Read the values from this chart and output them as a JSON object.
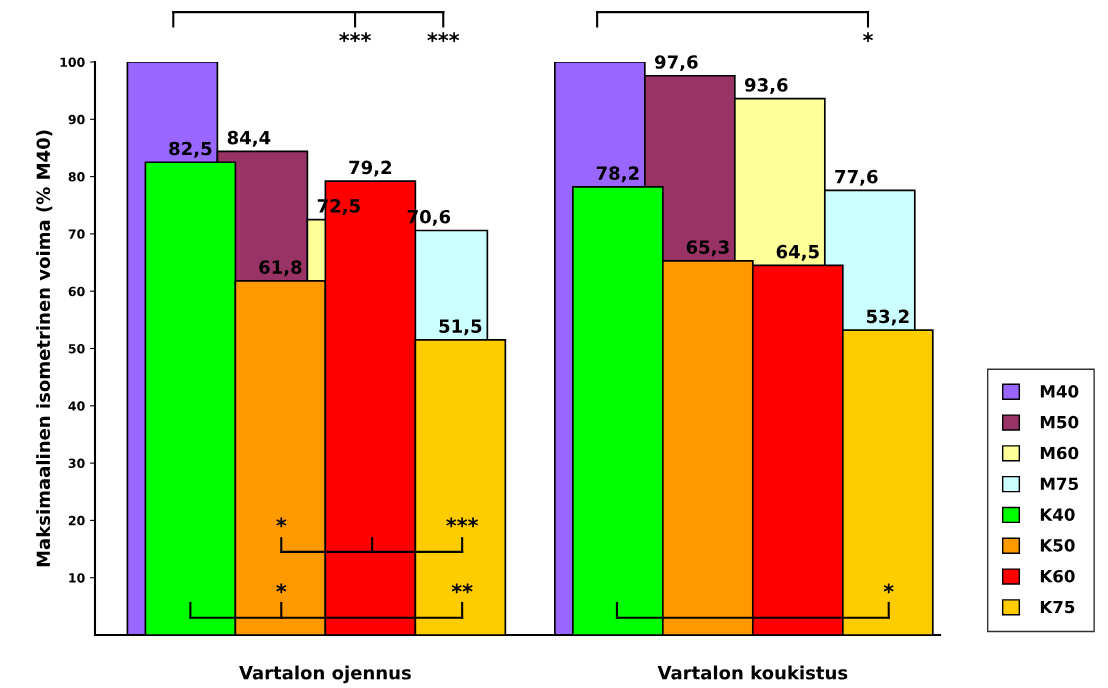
{
  "chart_data": {
    "type": "bar",
    "ylabel": "Maksimaalinen isometrinen voima (% M40)",
    "categories": [
      "Vartalon ojennus",
      "Vartalon koukistus"
    ],
    "series": [
      {
        "name": "M40",
        "color": "#9966ff",
        "values": [
          100,
          100
        ],
        "value_labels": [
          null,
          null
        ]
      },
      {
        "name": "M50",
        "color": "#993366",
        "values": [
          84.4,
          97.6
        ],
        "value_labels": [
          "84,4",
          "97,6"
        ]
      },
      {
        "name": "M60",
        "color": "#ffff99",
        "values": [
          72.5,
          93.6
        ],
        "value_labels": [
          "72,5",
          "93,6"
        ]
      },
      {
        "name": "M75",
        "color": "#ccffff",
        "values": [
          70.6,
          77.6
        ],
        "value_labels": [
          "70,6",
          "77,6"
        ]
      },
      {
        "name": "K40",
        "color": "#00ff00",
        "values": [
          82.5,
          78.2
        ],
        "value_labels": [
          "82,5",
          "78,2"
        ]
      },
      {
        "name": "K50",
        "color": "#ff9900",
        "values": [
          61.8,
          65.3
        ],
        "value_labels": [
          "61,8",
          "65,3"
        ]
      },
      {
        "name": "K60",
        "color": "#ff0000",
        "values": [
          79.2,
          64.5
        ],
        "value_labels": [
          "79,2",
          "64,5"
        ]
      },
      {
        "name": "K75",
        "color": "#ffcc00",
        "values": [
          51.5,
          53.2
        ],
        "value_labels": [
          "51,5",
          "53,2"
        ]
      }
    ],
    "ylim": [
      0,
      100
    ],
    "yticks": [
      10,
      20,
      30,
      40,
      50,
      60,
      70,
      80,
      90,
      100
    ],
    "grid": false,
    "legend": "bottom right",
    "annotations": [
      "***",
      "***",
      "*",
      "*",
      "***",
      "*",
      "**",
      "*"
    ]
  }
}
